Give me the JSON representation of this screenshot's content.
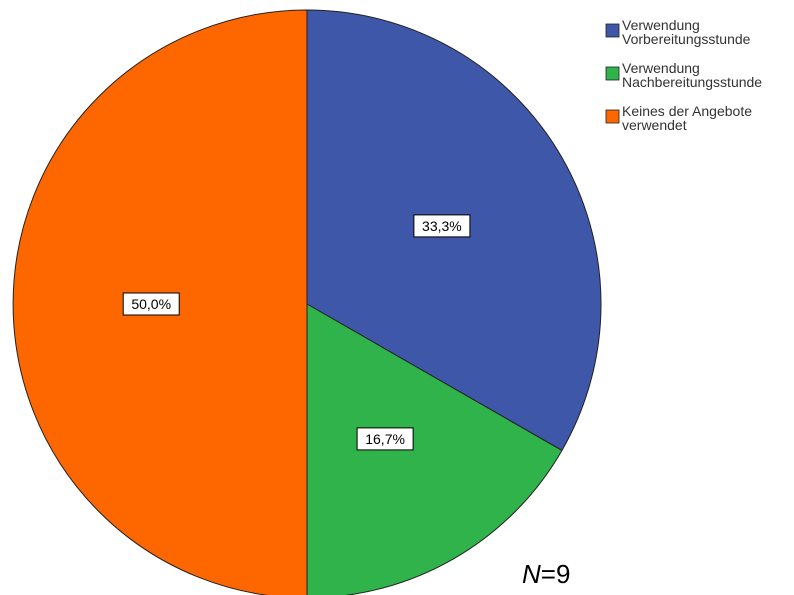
{
  "chart_data": {
    "type": "pie",
    "categories": [
      "Verwendung Vorbereitungsstunde",
      "Verwendung Nachbereitungsstunde",
      "Keines der Angebote verwendet"
    ],
    "values": [
      33.3,
      16.7,
      50.0
    ],
    "data_labels": [
      "33,3%",
      "16,7%",
      "50,0%"
    ],
    "colors": [
      "#3f57a8",
      "#2fb34a",
      "#fe6600"
    ],
    "legend": {
      "placement": "top-right",
      "entries": [
        [
          "Verwendung",
          "Vorbereitungsstunde"
        ],
        [
          "Verwendung",
          "Nachbereitungsstunde"
        ],
        [
          "Keines der Angebote",
          "verwendet"
        ]
      ]
    },
    "annotation": {
      "n_symbol": "N",
      "n_value": "=9"
    }
  }
}
